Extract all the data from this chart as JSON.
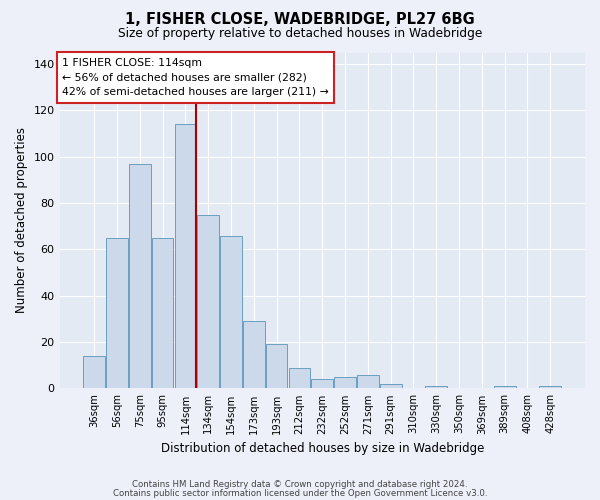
{
  "title": "1, FISHER CLOSE, WADEBRIDGE, PL27 6BG",
  "subtitle": "Size of property relative to detached houses in Wadebridge",
  "xlabel": "Distribution of detached houses by size in Wadebridge",
  "ylabel": "Number of detached properties",
  "footer1": "Contains HM Land Registry data © Crown copyright and database right 2024.",
  "footer2": "Contains public sector information licensed under the Open Government Licence v3.0.",
  "annotation_line1": "1 FISHER CLOSE: 114sqm",
  "annotation_line2": "← 56% of detached houses are smaller (282)",
  "annotation_line3": "42% of semi-detached houses are larger (211) →",
  "bar_categories": [
    "36sqm",
    "56sqm",
    "75sqm",
    "95sqm",
    "114sqm",
    "134sqm",
    "154sqm",
    "173sqm",
    "193sqm",
    "212sqm",
    "232sqm",
    "252sqm",
    "271sqm",
    "291sqm",
    "310sqm",
    "330sqm",
    "350sqm",
    "369sqm",
    "389sqm",
    "408sqm",
    "428sqm"
  ],
  "bar_values": [
    14,
    65,
    97,
    65,
    114,
    75,
    66,
    29,
    19,
    9,
    4,
    5,
    6,
    2,
    0,
    1,
    0,
    0,
    1,
    0,
    1
  ],
  "bar_color": "#ccd9ea",
  "bar_edge_color": "#6a9fc0",
  "marker_bar_index": 4,
  "marker_line_color": "#aa0000",
  "background_color": "#edf0f8",
  "plot_background_color": "#e4eaf4",
  "grid_color": "#ffffff",
  "ylim": [
    0,
    145
  ],
  "yticks": [
    0,
    20,
    40,
    60,
    80,
    100,
    120,
    140
  ]
}
